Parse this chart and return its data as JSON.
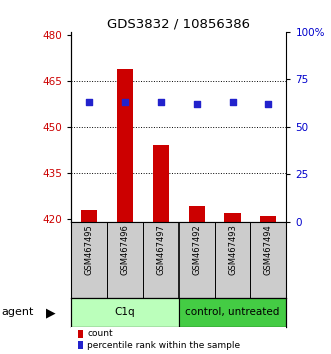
{
  "title": "GDS3832 / 10856386",
  "categories": [
    "GSM467495",
    "GSM467496",
    "GSM467497",
    "GSM467492",
    "GSM467493",
    "GSM467494"
  ],
  "counts": [
    423,
    469,
    444,
    424,
    422,
    421
  ],
  "percentiles": [
    63,
    63,
    63,
    62,
    63,
    62
  ],
  "ylim_left": [
    419,
    481
  ],
  "ylim_right": [
    0,
    100
  ],
  "yticks_left": [
    420,
    435,
    450,
    465,
    480
  ],
  "yticks_right": [
    0,
    25,
    50,
    75,
    100
  ],
  "ytick_labels_right": [
    "0",
    "25",
    "50",
    "75",
    "100%"
  ],
  "bar_color": "#cc0000",
  "scatter_color": "#2222cc",
  "groups": [
    {
      "label": "C1q",
      "color": "#bbffbb"
    },
    {
      "label": "control, untreated",
      "color": "#44cc44"
    }
  ],
  "agent_label": "agent",
  "legend_count_label": "count",
  "legend_percentile_label": "percentile rank within the sample",
  "bar_width": 0.45,
  "background_color": "#ffffff",
  "tick_label_color_left": "#cc0000",
  "tick_label_color_right": "#0000cc",
  "label_bg_color": "#cccccc",
  "gridline_ticks": [
    465,
    450,
    435
  ]
}
